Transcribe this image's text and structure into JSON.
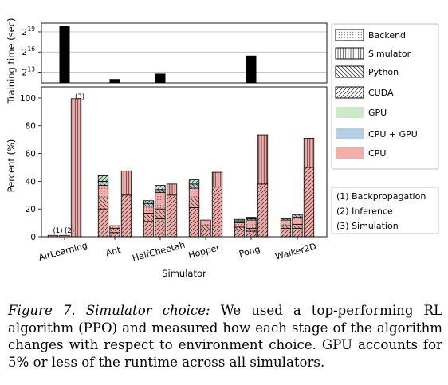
{
  "chart_data": [
    {
      "type": "bar",
      "ylabel": "Training time (sec)",
      "yscale": "log2",
      "ytick_labels": [
        "2",
        "2",
        "2"
      ],
      "ytick_exponents": [
        "19",
        "16",
        "13"
      ],
      "ytick_values": [
        524288,
        65536,
        8192
      ],
      "grid": "horizontal",
      "categories": [
        "AirLearning",
        "Ant",
        "HalfCheetah",
        "Hopper",
        "Pong",
        "Walker2D"
      ],
      "values": [
        1000000,
        4000,
        7000,
        2600,
        45000,
        2600
      ]
    },
    {
      "type": "bar",
      "stacked": true,
      "grouped": true,
      "xlabel": "Simulator",
      "ylabel": "Percent (%)",
      "ylim": [
        0,
        108
      ],
      "yticks": [
        "0",
        "20",
        "40",
        "60",
        "80",
        "100"
      ],
      "categories": [
        "AirLearning",
        "Ant",
        "HalfCheetah",
        "Hopper",
        "Pong",
        "Walker2D"
      ],
      "groups": [
        {
          "name": "(1) Backpropagation",
          "short": "(1)"
        },
        {
          "name": "(2) Inference",
          "short": "(2)"
        },
        {
          "name": "(3) Simulation",
          "short": "(3)"
        }
      ],
      "layers": [
        "Backend",
        "Simulator",
        "Python",
        "CUDA"
      ],
      "devices": [
        "GPU",
        "CPU + GPU",
        "CPU"
      ],
      "bars": [
        [
          {
            "total": 1,
            "seg": []
          },
          {
            "total": 1,
            "seg": []
          },
          {
            "total": 99.5,
            "seg": [
              [
                0,
                99.5,
                "CPU",
                "Simulator"
              ]
            ]
          }
        ],
        [
          {
            "total": 44,
            "seg": [
              [
                0,
                20,
                "CPU",
                "CUDA"
              ],
              [
                20,
                28,
                "CPU",
                "Python"
              ],
              [
                28,
                37,
                "CPU",
                "Backend"
              ],
              [
                37,
                40,
                "CPU + GPU",
                "Python"
              ],
              [
                40,
                44,
                "GPU",
                "CUDA"
              ]
            ]
          },
          {
            "total": 8,
            "seg": [
              [
                0,
                3,
                "CPU",
                "CUDA"
              ],
              [
                3,
                6,
                "CPU",
                "Python"
              ],
              [
                6,
                8,
                "CPU",
                "Backend"
              ]
            ]
          },
          {
            "total": 47.5,
            "seg": [
              [
                0,
                30,
                "CPU",
                "CUDA"
              ],
              [
                30,
                47.5,
                "CPU",
                "Simulator"
              ]
            ]
          }
        ],
        [
          {
            "total": 26,
            "seg": [
              [
                0,
                11,
                "CPU",
                "CUDA"
              ],
              [
                11,
                17,
                "CPU",
                "Python"
              ],
              [
                17,
                22,
                "CPU",
                "Backend"
              ],
              [
                22,
                24,
                "CPU + GPU",
                "Python"
              ],
              [
                24,
                26,
                "GPU",
                "CUDA"
              ]
            ]
          },
          {
            "total": 37,
            "seg": [
              [
                0,
                13,
                "CPU",
                "CUDA"
              ],
              [
                13,
                20,
                "CPU",
                "Python"
              ],
              [
                20,
                32,
                "CPU",
                "Backend"
              ],
              [
                32,
                34,
                "CPU + GPU",
                "Python"
              ],
              [
                34,
                37,
                "GPU",
                "CUDA"
              ]
            ]
          },
          {
            "total": 38,
            "seg": [
              [
                0,
                30,
                "CPU",
                "CUDA"
              ],
              [
                30,
                38,
                "CPU",
                "Simulator"
              ]
            ]
          }
        ],
        [
          {
            "total": 41,
            "seg": [
              [
                0,
                21,
                "CPU",
                "CUDA"
              ],
              [
                21,
                28,
                "CPU",
                "Python"
              ],
              [
                28,
                35,
                "CPU",
                "Backend"
              ],
              [
                35,
                38,
                "CPU + GPU",
                "Python"
              ],
              [
                38,
                41,
                "GPU",
                "CUDA"
              ]
            ]
          },
          {
            "total": 12,
            "seg": [
              [
                0,
                5,
                "CPU",
                "CUDA"
              ],
              [
                5,
                8,
                "CPU",
                "Python"
              ],
              [
                8,
                12,
                "CPU",
                "Backend"
              ]
            ]
          },
          {
            "total": 46.5,
            "seg": [
              [
                0,
                36,
                "CPU",
                "CUDA"
              ],
              [
                36,
                46.5,
                "CPU",
                "Simulator"
              ]
            ]
          }
        ],
        [
          {
            "total": 12.5,
            "seg": [
              [
                0,
                5,
                "CPU",
                "CUDA"
              ],
              [
                5,
                7,
                "CPU",
                "Python"
              ],
              [
                7,
                10,
                "CPU",
                "Backend"
              ],
              [
                10,
                11.5,
                "CPU + GPU",
                "Python"
              ],
              [
                11.5,
                12.5,
                "GPU",
                "CUDA"
              ]
            ]
          },
          {
            "total": 14,
            "seg": [
              [
                0,
                4,
                "CPU",
                "CUDA"
              ],
              [
                4,
                6,
                "CPU",
                "Python"
              ],
              [
                6,
                12,
                "CPU",
                "Backend"
              ],
              [
                12,
                13,
                "CPU + GPU",
                "Python"
              ],
              [
                13,
                14,
                "GPU",
                "CUDA"
              ]
            ]
          },
          {
            "total": 73.5,
            "seg": [
              [
                0,
                38,
                "CPU",
                "CUDA"
              ],
              [
                38,
                73.5,
                "CPU",
                "Simulator"
              ]
            ]
          }
        ],
        [
          {
            "total": 13,
            "seg": [
              [
                0,
                6,
                "CPU",
                "CUDA"
              ],
              [
                6,
                8,
                "CPU",
                "Python"
              ],
              [
                8,
                12,
                "CPU",
                "Backend"
              ],
              [
                12,
                13,
                "CPU + GPU",
                "Python"
              ]
            ]
          },
          {
            "total": 16,
            "seg": [
              [
                0,
                6,
                "CPU",
                "CUDA"
              ],
              [
                6,
                9,
                "CPU",
                "Python"
              ],
              [
                9,
                14,
                "CPU",
                "Backend"
              ],
              [
                14,
                16,
                "CPU + GPU",
                "Python"
              ]
            ]
          },
          {
            "total": 71,
            "seg": [
              [
                0,
                50,
                "CPU",
                "CUDA"
              ],
              [
                50,
                71,
                "CPU",
                "Simulator"
              ]
            ]
          }
        ]
      ]
    }
  ],
  "legend": {
    "layers": [
      {
        "label": "Backend",
        "pattern": "dots"
      },
      {
        "label": "Simulator",
        "pattern": "vlines"
      },
      {
        "label": "Python",
        "pattern": "backslash"
      },
      {
        "label": "CUDA",
        "pattern": "slash"
      }
    ],
    "devices": [
      {
        "label": "GPU",
        "color": "#cfe8c9"
      },
      {
        "label": "CPU + GPU",
        "color": "#b3cfe3"
      },
      {
        "label": "CPU",
        "color": "#f4aea9"
      }
    ],
    "phases": [
      "(1) Backpropagation",
      "(2) Inference",
      "(3) Simulation"
    ]
  },
  "caption": {
    "label": "Figure 7. Simulator choice:",
    "text": "We used a top-performing RL algorithm (PPO) and measured how each stage of the algorithm changes with respect to environment choice. GPU accounts for 5% or less of the runtime across all simulators."
  }
}
